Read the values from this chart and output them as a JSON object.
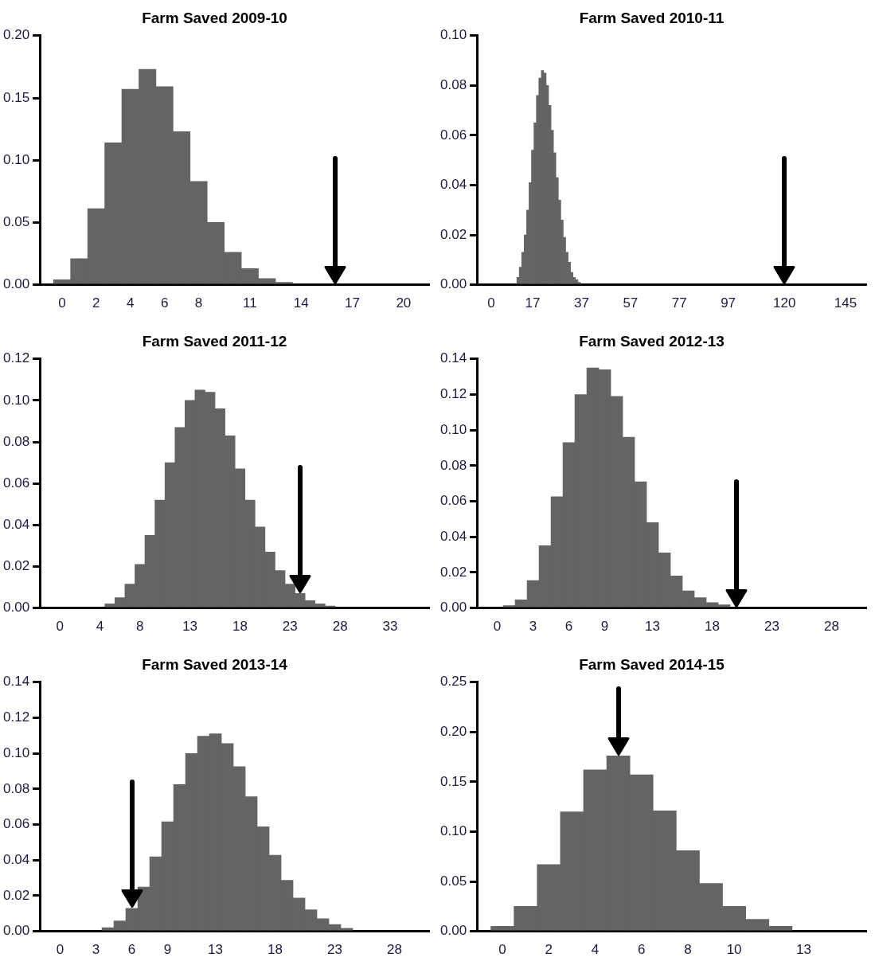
{
  "chart_data": [
    {
      "type": "histogram",
      "title": "Farm Saved 2009-10",
      "color": "#646464",
      "bins": [
        -0.5,
        0.5,
        1.5,
        2.5,
        3.5,
        4.5,
        5.5,
        6.5,
        7.5,
        8.5,
        9.5,
        10.5,
        11.5,
        12.5,
        13.5
      ],
      "values": [
        0.004,
        0.021,
        0.061,
        0.114,
        0.157,
        0.173,
        0.159,
        0.123,
        0.083,
        0.05,
        0.026,
        0.013,
        0.005,
        0.002
      ],
      "xlim": [
        -1.3,
        21.5
      ],
      "xticks": [
        0,
        2,
        4,
        6,
        8,
        11,
        14,
        17,
        20
      ],
      "ylim": [
        0,
        0.2
      ],
      "yticks": [
        {
          "value": 0,
          "label": "0.00"
        },
        {
          "value": 0.05,
          "label": "0.05"
        },
        {
          "value": 0.1,
          "label": "0.10"
        },
        {
          "value": 0.15,
          "label": "0.15"
        },
        {
          "value": 0.2,
          "label": "0.20"
        }
      ],
      "ref_lines": [
        {
          "axis": "x",
          "value": 16
        }
      ]
    },
    {
      "type": "histogram",
      "title": "Farm Saved 2010-11",
      "color": "#646464",
      "bins": [
        10.5,
        11.5,
        12.5,
        13.5,
        14.5,
        15.5,
        16.5,
        17.5,
        18.5,
        19.5,
        20.5,
        21.5,
        22.5,
        23.5,
        24.5,
        25.5,
        26.5,
        27.5,
        28.5,
        29.5,
        30.5,
        31.5,
        32.5,
        33.5,
        34.5,
        35.5,
        36.5
      ],
      "values": [
        0.003,
        0.007,
        0.013,
        0.02,
        0.03,
        0.041,
        0.054,
        0.065,
        0.076,
        0.083,
        0.086,
        0.085,
        0.08,
        0.072,
        0.062,
        0.053,
        0.043,
        0.034,
        0.026,
        0.019,
        0.013,
        0.009,
        0.005,
        0.003,
        0.002,
        0.001
      ],
      "xlim": [
        -5.8,
        153.5
      ],
      "xticks": [
        0,
        17,
        37,
        57,
        77,
        97,
        120,
        145
      ],
      "ylim": [
        0,
        0.1
      ],
      "yticks": [
        {
          "value": 0,
          "label": "0.00"
        },
        {
          "value": 0.02,
          "label": "0.02"
        },
        {
          "value": 0.04,
          "label": "0.04"
        },
        {
          "value": 0.06,
          "label": "0.06"
        },
        {
          "value": 0.08,
          "label": "0.08"
        },
        {
          "value": 0.1,
          "label": "0.10"
        }
      ],
      "ref_lines": [
        {
          "axis": "x",
          "value": 120
        }
      ]
    },
    {
      "type": "histogram",
      "title": "Farm Saved 2011-12",
      "color": "#646464",
      "bins": [
        4.5,
        5.5,
        6.5,
        7.5,
        8.5,
        9.5,
        10.5,
        11.5,
        12.5,
        13.5,
        14.5,
        15.5,
        16.5,
        17.5,
        18.5,
        19.5,
        20.5,
        21.5,
        22.5,
        23.5,
        24.5,
        25.5,
        26.5,
        27.5
      ],
      "values": [
        0.002,
        0.005,
        0.0115,
        0.021,
        0.035,
        0.052,
        0.07,
        0.087,
        0.1,
        0.105,
        0.104,
        0.096,
        0.083,
        0.067,
        0.052,
        0.039,
        0.027,
        0.018,
        0.0115,
        0.007,
        0.0036,
        0.002,
        0.001
      ],
      "xlim": [
        -2,
        36.9
      ],
      "xticks": [
        0,
        4,
        8,
        13,
        18,
        23,
        28,
        33
      ],
      "ylim": [
        0,
        0.12
      ],
      "yticks": [
        {
          "value": 0,
          "label": "0.00"
        },
        {
          "value": 0.02,
          "label": "0.02"
        },
        {
          "value": 0.04,
          "label": "0.04"
        },
        {
          "value": 0.06,
          "label": "0.06"
        },
        {
          "value": 0.08,
          "label": "0.08"
        },
        {
          "value": 0.1,
          "label": "0.10"
        },
        {
          "value": 0.12,
          "label": "0.12"
        }
      ],
      "ref_lines": [
        {
          "axis": "x",
          "value": 24
        }
      ]
    },
    {
      "type": "histogram",
      "title": "Farm Saved 2012-13",
      "color": "#646464",
      "bins": [
        0.5,
        1.5,
        2.5,
        3.5,
        4.5,
        5.5,
        6.5,
        7.5,
        8.5,
        9.5,
        10.5,
        11.5,
        12.5,
        13.5,
        14.5,
        15.5,
        16.5,
        17.5,
        18.5,
        19.5
      ],
      "values": [
        0.0013,
        0.0046,
        0.0154,
        0.035,
        0.0626,
        0.093,
        0.12,
        0.135,
        0.134,
        0.119,
        0.096,
        0.071,
        0.048,
        0.031,
        0.018,
        0.0096,
        0.0058,
        0.003,
        0.0018
      ],
      "xlim": [
        -1.7,
        30.9
      ],
      "xticks": [
        0,
        3,
        6,
        9,
        13,
        18,
        23,
        28
      ],
      "ylim": [
        0,
        0.14
      ],
      "yticks": [
        {
          "value": 0,
          "label": "0.00"
        },
        {
          "value": 0.02,
          "label": "0.02"
        },
        {
          "value": 0.04,
          "label": "0.04"
        },
        {
          "value": 0.06,
          "label": "0.06"
        },
        {
          "value": 0.08,
          "label": "0.08"
        },
        {
          "value": 0.1,
          "label": "0.10"
        },
        {
          "value": 0.12,
          "label": "0.12"
        },
        {
          "value": 0.14,
          "label": "0.14"
        }
      ],
      "ref_lines": [
        {
          "axis": "x",
          "value": 20
        }
      ]
    },
    {
      "type": "histogram",
      "title": "Farm Saved 2013-14",
      "color": "#646464",
      "bins": [
        3.5,
        4.5,
        5.5,
        6.5,
        7.5,
        8.5,
        9.5,
        10.5,
        11.5,
        12.5,
        13.5,
        14.5,
        15.5,
        16.5,
        17.5,
        18.5,
        19.5,
        20.5,
        21.5,
        22.5,
        23.5,
        24.5
      ],
      "values": [
        0.002,
        0.0058,
        0.0129,
        0.0249,
        0.0419,
        0.0616,
        0.0825,
        0.0999,
        0.1097,
        0.111,
        0.1055,
        0.0926,
        0.0757,
        0.0588,
        0.0427,
        0.0287,
        0.0187,
        0.0121,
        0.0071,
        0.0038,
        0.0017
      ],
      "xlim": [
        -1.7,
        30.9
      ],
      "xticks": [
        0,
        3,
        6,
        9,
        13,
        18,
        23,
        28
      ],
      "ylim": [
        0,
        0.14
      ],
      "yticks": [
        {
          "value": 0,
          "label": "0.00"
        },
        {
          "value": 0.02,
          "label": "0.02"
        },
        {
          "value": 0.04,
          "label": "0.04"
        },
        {
          "value": 0.06,
          "label": "0.06"
        },
        {
          "value": 0.08,
          "label": "0.08"
        },
        {
          "value": 0.1,
          "label": "0.10"
        },
        {
          "value": 0.12,
          "label": "0.12"
        },
        {
          "value": 0.14,
          "label": "0.14"
        }
      ],
      "ref_lines": [
        {
          "axis": "x",
          "value": 6
        }
      ]
    },
    {
      "type": "histogram",
      "title": "Farm Saved 2014-15",
      "color": "#646464",
      "bins": [
        -0.5,
        0.5,
        1.5,
        2.5,
        3.5,
        4.5,
        5.5,
        6.5,
        7.5,
        8.5,
        9.5,
        10.5,
        11.5,
        12.5
      ],
      "values": [
        0.005,
        0.025,
        0.067,
        0.12,
        0.162,
        0.176,
        0.157,
        0.121,
        0.081,
        0.048,
        0.025,
        0.012,
        0.005
      ],
      "xlim": [
        -1.1,
        15.7
      ],
      "xticks": [
        0,
        2,
        4,
        6,
        8,
        10,
        13
      ],
      "ylim": [
        0,
        0.25
      ],
      "yticks": [
        {
          "value": 0,
          "label": "0.00"
        },
        {
          "value": 0.05,
          "label": "0.05"
        },
        {
          "value": 0.1,
          "label": "0.10"
        },
        {
          "value": 0.15,
          "label": "0.15"
        },
        {
          "value": 0.2,
          "label": "0.20"
        },
        {
          "value": 0.25,
          "label": "0.25"
        }
      ],
      "ref_lines": [
        {
          "axis": "x",
          "value": 5
        }
      ]
    }
  ]
}
